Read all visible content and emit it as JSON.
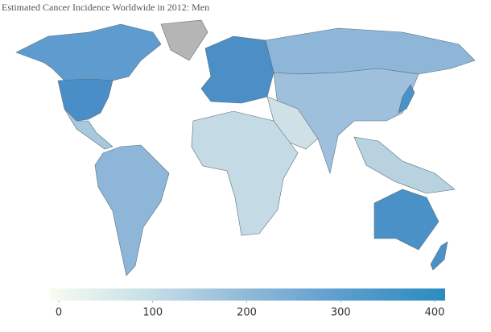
{
  "chart_data": {
    "type": "choropleth",
    "title": "Estimated Cancer Incidence Worldwide in 2012: Men",
    "colorbar": {
      "ticks": [
        0,
        100,
        200,
        300,
        400
      ],
      "colors": [
        "#f7fcf0",
        "#c7dfe7",
        "#8fb9d8",
        "#5a9ccd",
        "#2b8cbe"
      ]
    }
  }
}
